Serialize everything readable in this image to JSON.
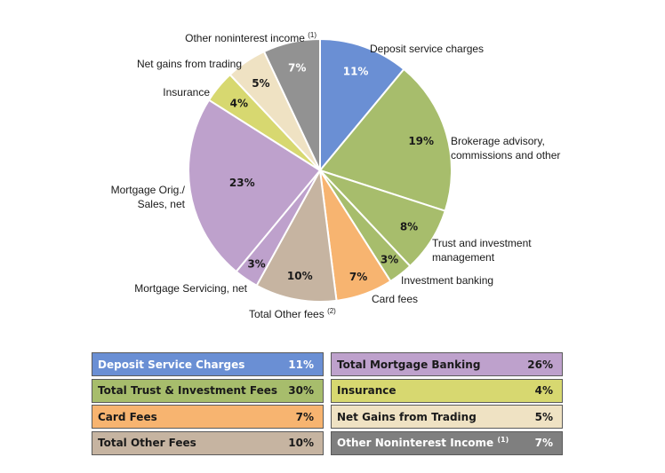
{
  "chart_data": {
    "type": "pie",
    "title": "",
    "slices": [
      {
        "label": "Deposit service charges",
        "value": 11,
        "pct_label": "11%",
        "color": "#6a8fd4"
      },
      {
        "label": "Brokerage advisory, commissions and other",
        "value": 19,
        "pct_label": "19%",
        "color": "#a7bd6c"
      },
      {
        "label": "Trust and investment management",
        "value": 8,
        "pct_label": "8%",
        "color": "#a7bd6c"
      },
      {
        "label": "Investment banking",
        "value": 3,
        "pct_label": "3%",
        "color": "#a7bd6c"
      },
      {
        "label": "Card fees",
        "value": 7,
        "pct_label": "7%",
        "color": "#f7b470"
      },
      {
        "label": "Total Other fees",
        "note": "(2)",
        "value": 10,
        "pct_label": "10%",
        "color": "#c6b4a1"
      },
      {
        "label": "Mortgage Servicing, net",
        "value": 3,
        "pct_label": "3%",
        "color": "#bea1cc"
      },
      {
        "label": "Mortgage Orig./ Sales, net",
        "value": 23,
        "pct_label": "23%",
        "color": "#bea1cc"
      },
      {
        "label": "Insurance",
        "value": 4,
        "pct_label": "4%",
        "color": "#d7d870"
      },
      {
        "label": "Net gains from trading",
        "value": 5,
        "pct_label": "5%",
        "color": "#efe2c3"
      },
      {
        "label": "Other noninterest income",
        "note": "(1)",
        "value": 7,
        "pct_label": "7%",
        "color": "#929292"
      }
    ]
  },
  "table": {
    "left": [
      {
        "name": "Deposit Service Charges",
        "value": "11%",
        "color": "#6a8fd4",
        "text_color": "#ffffff"
      },
      {
        "name": "Total Trust & Investment Fees",
        "value": "30%",
        "color": "#a7bd6c",
        "text_color": "#1a1a1a"
      },
      {
        "name": "Card Fees",
        "value": "7%",
        "color": "#f7b470",
        "text_color": "#1a1a1a"
      },
      {
        "name": "Total Other Fees",
        "value": "10%",
        "color": "#c6b4a1",
        "text_color": "#1a1a1a"
      }
    ],
    "right": [
      {
        "name": "Total Mortgage Banking",
        "value": "26%",
        "color": "#bea1cc",
        "text_color": "#1a1a1a"
      },
      {
        "name": "Insurance",
        "value": "4%",
        "color": "#d7d870",
        "text_color": "#1a1a1a"
      },
      {
        "name": "Net Gains from Trading",
        "value": "5%",
        "color": "#efe2c3",
        "text_color": "#1a1a1a"
      },
      {
        "name": "Other Noninterest Income",
        "note": "(1)",
        "value": "7%",
        "color": "#7f7f7f",
        "text_color": "#ffffff"
      }
    ]
  }
}
